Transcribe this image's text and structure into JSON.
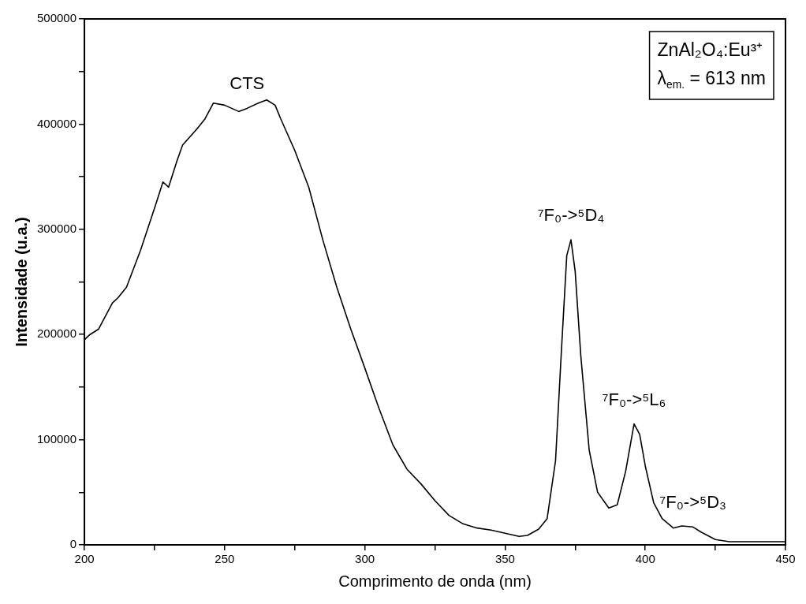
{
  "chart_data": {
    "type": "line",
    "xlabel": "Comprimento de onda (nm)",
    "ylabel": "Intensidade (u.a.)",
    "xlim": [
      200,
      450
    ],
    "xticks": [
      200,
      {
        "value": 225,
        "label": null
      },
      250,
      {
        "value": 275,
        "label": null
      },
      300,
      {
        "value": 325,
        "label": null
      },
      350,
      {
        "value": 375,
        "label": null
      },
      400,
      {
        "value": 425,
        "label": null
      },
      450
    ],
    "ylim": [
      0,
      500000
    ],
    "yticks": [
      0,
      {
        "value": 50000,
        "label": null
      },
      100000,
      {
        "value": 150000,
        "label": null
      },
      200000,
      {
        "value": 250000,
        "label": null
      },
      300000,
      {
        "value": 350000,
        "label": null
      },
      400000,
      {
        "value": 450000,
        "label": null
      },
      500000
    ],
    "grid": false,
    "legend": false,
    "marker": "none",
    "line_style": "solid",
    "series": [
      {
        "color": "#000000",
        "x": [
          200,
          202,
          205,
          210,
          212,
          215,
          220,
          225,
          228,
          230,
          233,
          235,
          240,
          243,
          246,
          250,
          255,
          258,
          262,
          265,
          268,
          270,
          275,
          280,
          285,
          290,
          295,
          300,
          305,
          310,
          315,
          320,
          325,
          330,
          335,
          340,
          345,
          350,
          355,
          358,
          362,
          365,
          368,
          370,
          372,
          373.5,
          375,
          377,
          380,
          383,
          387,
          390,
          393,
          396,
          398,
          400,
          403,
          406,
          410,
          413,
          417,
          420,
          425,
          430,
          450
        ],
        "values": [
          195000,
          200000,
          205000,
          230000,
          235000,
          245000,
          280000,
          320000,
          345000,
          340000,
          365000,
          380000,
          395000,
          405000,
          420000,
          418000,
          412000,
          415000,
          420000,
          423000,
          418000,
          405000,
          375000,
          340000,
          290000,
          245000,
          205000,
          168000,
          130000,
          95000,
          72000,
          58000,
          42000,
          28000,
          20000,
          16000,
          14000,
          11000,
          8000,
          9000,
          15000,
          25000,
          80000,
          180000,
          275000,
          290000,
          260000,
          180000,
          90000,
          50000,
          35000,
          38000,
          70000,
          115000,
          105000,
          75000,
          40000,
          25000,
          16000,
          18000,
          17000,
          12000,
          5000,
          3000,
          3000
        ]
      }
    ],
    "annotations": [
      {
        "text": "CTS",
        "x": 258,
        "y": 415000
      },
      {
        "text": "⁷F₀->⁵D₄",
        "x": 373.5,
        "y": 290000
      },
      {
        "text": "⁷F₀->⁵L₆",
        "x": 396,
        "y": 115000
      },
      {
        "text": "⁷F₀->⁵D₃",
        "x": 417,
        "y": 17000
      },
      "ZnAl₂O₄:Eu³⁺",
      "λ$_{em.}$ = 613 nm"
    ]
  }
}
